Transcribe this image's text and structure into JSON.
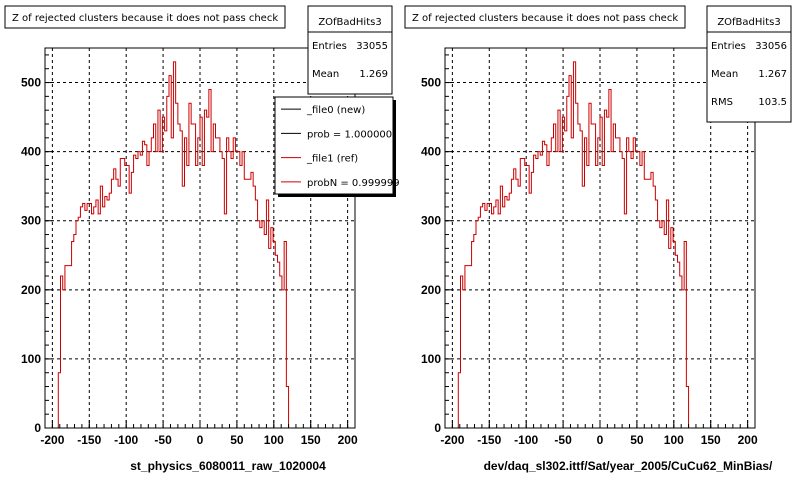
{
  "chart_data": [
    {
      "type": "histogram",
      "title": "Z of rejected clusters  because it does not pass check",
      "xlabel": "st_physics_6080011_raw_1020004",
      "ylabel": "",
      "xlim": [
        -210,
        210
      ],
      "ylim": [
        0,
        550
      ],
      "xticks": [
        "-200",
        "-150",
        "-100",
        "-50",
        "0",
        "50",
        "100",
        "150",
        "200"
      ],
      "yticks": [
        "0",
        "100",
        "200",
        "300",
        "400",
        "500"
      ],
      "grid": true,
      "stats": {
        "name": "ZOfBadHits3",
        "rows": [
          {
            "label": "Entries",
            "value": "33055"
          },
          {
            "label": "Mean",
            "value": "1.269"
          }
        ]
      },
      "legend": {
        "entries": [
          {
            "text": "_file0 (new)",
            "color": "#000000"
          },
          {
            "text": "prob = 1.000000",
            "color": "#000000"
          },
          {
            "text": "_file1 (ref)",
            "color": "#cc0000"
          },
          {
            "text": "probN = 0.999999",
            "color": "#cc0000"
          }
        ]
      },
      "series": [
        {
          "color": "#cc0000",
          "bin_width": 3,
          "x_start": -195,
          "values": [
            0,
            80,
            220,
            200,
            235,
            235,
            235,
            270,
            280,
            300,
            305,
            320,
            325,
            315,
            325,
            325,
            310,
            320,
            330,
            310,
            350,
            320,
            335,
            330,
            340,
            360,
            375,
            360,
            350,
            390,
            390,
            380,
            380,
            340,
            370,
            395,
            390,
            400,
            395,
            415,
            410,
            380,
            400,
            420,
            440,
            400,
            460,
            400,
            450,
            430,
            480,
            510,
            420,
            530,
            470,
            440,
            430,
            350,
            420,
            380,
            470,
            440,
            440,
            380,
            420,
            450,
            380,
            460,
            450,
            490,
            400,
            440,
            420,
            420,
            400,
            390,
            310,
            420,
            400,
            390,
            420,
            400,
            400,
            380,
            400,
            360,
            360,
            360,
            370,
            350,
            330,
            300,
            290,
            300,
            280,
            330,
            260,
            290,
            270,
            250,
            240,
            220,
            200,
            270,
            60,
            0
          ]
        }
      ]
    },
    {
      "type": "histogram",
      "title": "Z of rejected clusters  because it does not pass check",
      "xlabel": "dev/daq_sl302.ittf/Sat/year_2005/CuCu62_MinBias/",
      "ylabel": "",
      "xlim": [
        -210,
        210
      ],
      "ylim": [
        0,
        550
      ],
      "xticks": [
        "-200",
        "-150",
        "-100",
        "-50",
        "0",
        "50",
        "100",
        "150",
        "200"
      ],
      "yticks": [
        "0",
        "100",
        "200",
        "300",
        "400",
        "500"
      ],
      "grid": true,
      "stats": {
        "name": "ZOfBadHits3",
        "rows": [
          {
            "label": "Entries",
            "value": "33056"
          },
          {
            "label": "Mean",
            "value": "1.267"
          },
          {
            "label": "RMS",
            "value": "103.5"
          }
        ]
      },
      "series": [
        {
          "color": "#cc0000",
          "bin_width": 3,
          "x_start": -195,
          "values": [
            0,
            80,
            220,
            200,
            235,
            235,
            235,
            270,
            280,
            300,
            305,
            320,
            325,
            315,
            325,
            325,
            310,
            320,
            330,
            310,
            350,
            320,
            335,
            330,
            340,
            360,
            375,
            360,
            350,
            390,
            390,
            380,
            380,
            340,
            370,
            395,
            390,
            400,
            395,
            415,
            410,
            380,
            400,
            420,
            440,
            400,
            460,
            400,
            450,
            430,
            480,
            510,
            420,
            530,
            470,
            440,
            430,
            350,
            420,
            380,
            470,
            440,
            440,
            380,
            420,
            450,
            380,
            460,
            450,
            490,
            400,
            440,
            420,
            420,
            400,
            390,
            310,
            420,
            400,
            390,
            420,
            400,
            400,
            380,
            400,
            360,
            360,
            360,
            370,
            350,
            330,
            300,
            290,
            300,
            280,
            330,
            260,
            290,
            270,
            250,
            240,
            220,
            200,
            270,
            60,
            0
          ]
        }
      ]
    }
  ]
}
